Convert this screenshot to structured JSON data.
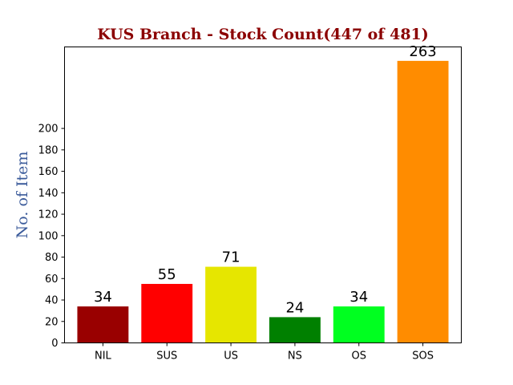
{
  "chart_data": {
    "type": "bar",
    "title": "KUS Branch - Stock Count(447 of 481)",
    "xlabel": "",
    "ylabel": "No. of Item",
    "categories": [
      "NIL",
      "SUS",
      "US",
      "NS",
      "OS",
      "SOS"
    ],
    "values": [
      34,
      55,
      71,
      24,
      34,
      263
    ],
    "data_labels": [
      "34",
      "55",
      "71",
      "24",
      "34",
      "263"
    ],
    "colors": [
      "#990000",
      "#ff0000",
      "#e6e600",
      "#008000",
      "#00ff20",
      "#ff8c00"
    ],
    "ylim": [
      0,
      276
    ],
    "yticks": [
      0,
      20,
      40,
      60,
      80,
      100,
      120,
      140,
      160,
      180,
      200
    ],
    "ytick_labels": [
      "0",
      "20",
      "40",
      "60",
      "80",
      "100",
      "120",
      "140",
      "160",
      "180",
      "200"
    ],
    "grid": false,
    "legend": "none"
  }
}
